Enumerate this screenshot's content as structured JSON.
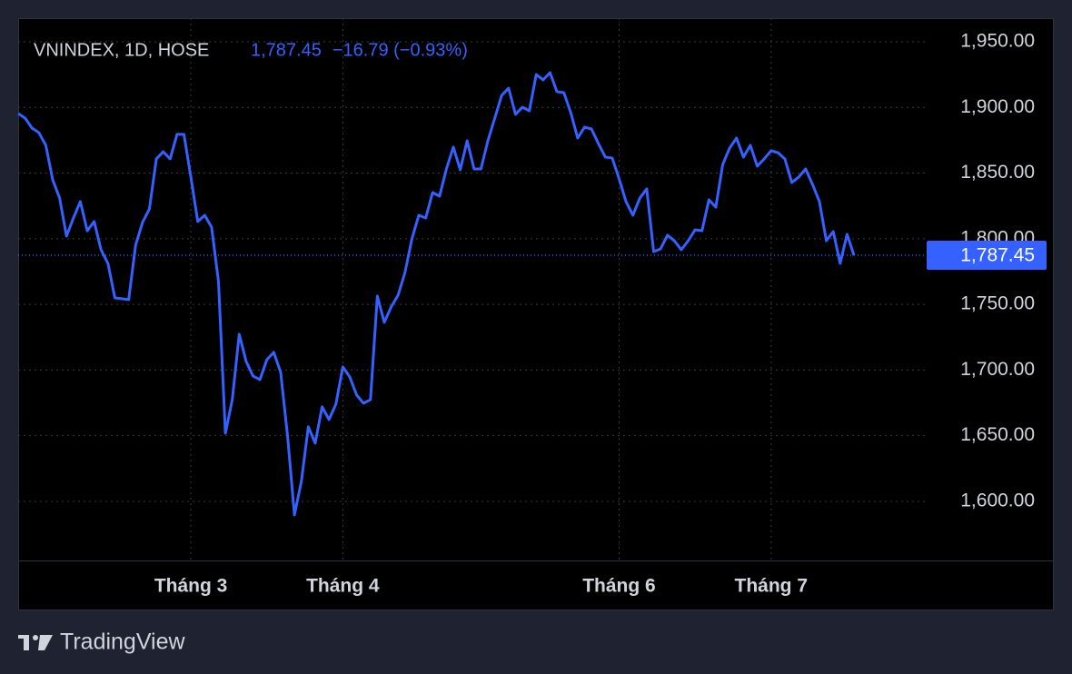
{
  "chart_data": {
    "type": "line",
    "title": "VNINDEX, 1D, HOSE",
    "last_price": {
      "value": 1787.45,
      "label": "1,787.45"
    },
    "change": "−16.79 (−0.93%)",
    "brand": "TradingView",
    "color": "#3461ff",
    "grid": true,
    "categories": [
      null,
      null,
      null,
      null,
      null,
      null,
      null,
      null,
      null,
      null,
      null,
      null,
      null,
      null,
      null,
      null,
      null,
      null,
      null,
      null,
      null,
      null,
      null,
      null,
      null,
      "Tháng 3",
      null,
      null,
      null,
      null,
      null,
      null,
      null,
      null,
      null,
      null,
      null,
      null,
      null,
      null,
      null,
      null,
      null,
      null,
      null,
      null,
      null,
      "Tháng 4",
      null,
      null,
      null,
      null,
      null,
      null,
      null,
      null,
      null,
      null,
      null,
      null,
      null,
      null,
      null,
      null,
      null,
      null,
      null,
      null,
      null,
      null,
      null,
      null,
      null,
      null,
      null,
      null,
      null,
      null,
      null,
      null,
      null,
      null,
      null,
      null,
      null,
      null,
      null,
      "Tháng 6",
      null,
      null,
      null,
      null,
      null,
      null,
      null,
      null,
      null,
      null,
      null,
      null,
      null,
      null,
      null,
      null,
      null,
      null,
      null,
      null,
      null,
      "Tháng 7",
      null,
      null,
      null,
      null,
      null,
      null,
      null,
      null,
      null,
      null,
      null,
      null
    ],
    "series": [
      {
        "name": "VNINDEX",
        "color": "#3461ff",
        "values": [
          1895.4,
          1891.9,
          1884.3,
          1880.8,
          1871.2,
          1844.9,
          1831.0,
          1802.0,
          1815.8,
          1828.3,
          1806.1,
          1813.1,
          1791.6,
          1781.2,
          1755.0,
          1754.3,
          1753.6,
          1795.1,
          1812.4,
          1822.7,
          1860.8,
          1866.3,
          1860.8,
          1879.5,
          1879.5,
          1847.0,
          1813.1,
          1817.9,
          1808.9,
          1767.4,
          1651.9,
          1677.5,
          1727.3,
          1706.6,
          1695.5,
          1692.7,
          1707.9,
          1713.5,
          1698.3,
          1649.8,
          1589.7,
          1615.3,
          1656.8,
          1644.3,
          1672.0,
          1662.3,
          1674.1,
          1702.4,
          1694.8,
          1681.0,
          1674.7,
          1677.5,
          1756.4,
          1736.3,
          1748.1,
          1757.0,
          1774.3,
          1799.9,
          1817.9,
          1815.8,
          1835.2,
          1832.4,
          1853.2,
          1869.8,
          1852.5,
          1874.6,
          1853.2,
          1853.2,
          1874.6,
          1891.9,
          1909.2,
          1914.7,
          1894.7,
          1900.2,
          1897.4,
          1925.1,
          1921.0,
          1926.5,
          1912.0,
          1911.3,
          1896.1,
          1876.7,
          1885.0,
          1883.6,
          1872.5,
          1862.2,
          1861.5,
          1845.6,
          1828.3,
          1817.9,
          1831.0,
          1838.0,
          1790.2,
          1792.3,
          1802.7,
          1798.5,
          1791.6,
          1798.5,
          1806.8,
          1806.1,
          1829.7,
          1824.1,
          1856.6,
          1869.1,
          1876.7,
          1862.2,
          1871.2,
          1855.3,
          1860.8,
          1867.0,
          1865.6,
          1860.8,
          1842.8,
          1847.0,
          1853.2,
          1841.4,
          1828.3,
          1798.5,
          1805.5,
          1781.2,
          1803.4,
          1787.45
        ]
      }
    ],
    "ylim": [
      1555,
      1968
    ],
    "yticks": [
      {
        "value": 1600,
        "label": "1,600.00"
      },
      {
        "value": 1650,
        "label": "1,650.00"
      },
      {
        "value": 1700,
        "label": "1,700.00"
      },
      {
        "value": 1750,
        "label": "1,750.00"
      },
      {
        "value": 1800,
        "label": "1,800.00"
      },
      {
        "value": 1850,
        "label": "1,850.00"
      },
      {
        "value": 1900,
        "label": "1,900.00"
      },
      {
        "value": 1950,
        "label": "1,950.00"
      }
    ]
  }
}
